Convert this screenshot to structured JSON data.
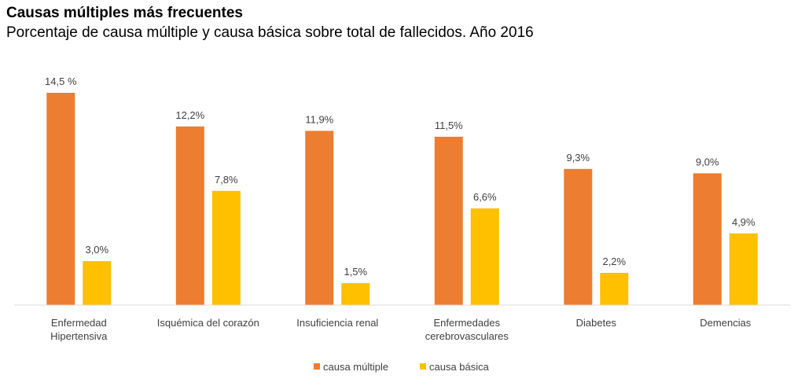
{
  "header": {
    "title": "Causas múltiples más frecuentes",
    "subtitle": "Porcentaje de causa múltiple y causa básica sobre total de fallecidos. Año 2016"
  },
  "chart_data": {
    "type": "bar",
    "categories": [
      [
        "Enfermedad",
        "Hipertensiva"
      ],
      [
        "Isquémica del corazón"
      ],
      [
        "Insuficiencia renal"
      ],
      [
        "Enfermedades",
        "cerebrovasculares"
      ],
      [
        "Diabetes"
      ],
      [
        "Demencias"
      ]
    ],
    "series": [
      {
        "name": "causa múltiple",
        "color": "#ED7D31",
        "values": [
          14.5,
          12.2,
          11.9,
          11.5,
          9.3,
          9.0
        ],
        "labels": [
          "14,5 %",
          "12,2%",
          "11,9%",
          "11,5%",
          "9,3%",
          "9,0%"
        ]
      },
      {
        "name": "causa básica",
        "color": "#FFC000",
        "values": [
          3.0,
          7.8,
          1.5,
          6.6,
          2.2,
          4.9
        ],
        "labels": [
          "3,0%",
          "7,8%",
          "1,5%",
          "6,6%",
          "2,2%",
          "4,9%"
        ]
      }
    ],
    "ylim": [
      0,
      15
    ],
    "grid": false,
    "legend": "bottom-center"
  }
}
